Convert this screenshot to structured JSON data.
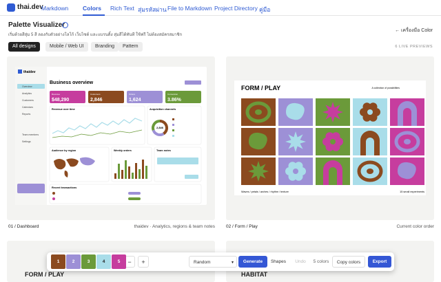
{
  "header": {
    "logo": "thai.dev",
    "nav": [
      "Markdown",
      "Colors",
      "Rich Text",
      "สุ่มรหัสผ่าน",
      "File to Markdown",
      "Project Directory",
      "คู่มือ"
    ],
    "active": 1
  },
  "page": {
    "title": "Palette Visualizer",
    "subtitle": "เริ่มด้วยสีสุ่ม 5 สี ลองกับตัวอย่างโลโก้ เว็บไซต์ และแบรนดิ้ง สุ่มสีได้ทันที ใช้ฟรี ไม่ต้องสมัครสมาชิก",
    "back": "← เครื่องมือ Color",
    "tabs": [
      "All designs",
      "Mobile / Web UI",
      "Branding",
      "Pattern"
    ],
    "active_tab": 0,
    "count": "6 LIVE PREVIEWS"
  },
  "palette": [
    {
      "label": "1",
      "color": "#8b4a1f"
    },
    {
      "label": "2",
      "color": "#9d90d6"
    },
    {
      "label": "3",
      "color": "#6b9a3a"
    },
    {
      "label": "4",
      "color": "#a9dde9"
    },
    {
      "label": "5",
      "color": "#c63d9e"
    }
  ],
  "cards": [
    {
      "caption": "01 / Dashboard",
      "meta": "thaidev · Analytics, regions & team notes"
    },
    {
      "caption": "02 / Form / Play",
      "meta": "Current color order"
    }
  ],
  "dashboard": {
    "brand": "thaidev",
    "menu": [
      "Overview",
      "Analytics",
      "Customers",
      "Calendars",
      "Reports",
      "Team members",
      "Settings"
    ],
    "title": "Business overview",
    "kpis": [
      {
        "label": "Revenue",
        "value": "$48,290"
      },
      {
        "label": "Customers",
        "value": "2,846"
      },
      {
        "label": "Orders",
        "value": "1,624"
      },
      {
        "label": "Conversion",
        "value": "3.86%"
      }
    ],
    "sections": [
      "Revenue over time",
      "Acquisition channels",
      "Audience by region",
      "Weekly orders",
      "Team notes",
      "Recent transactions"
    ],
    "donut_value": "2,846"
  },
  "form_play": {
    "title": "FORM / PLAY",
    "tagline": "A collection of possibilities",
    "footer_left": "Waves / petals / arches / rhythm / texture",
    "footer_right": "15 small experiments"
  },
  "more": [
    "FORM / PLAY",
    "HABITAT"
  ],
  "toolbar": {
    "minus": "−",
    "plus": "+",
    "mode": "Random",
    "generate": "Generate",
    "shapes": "Shapes",
    "undo": "Undo",
    "count": "5 colors",
    "copy": "Copy colors",
    "export": "Export"
  }
}
